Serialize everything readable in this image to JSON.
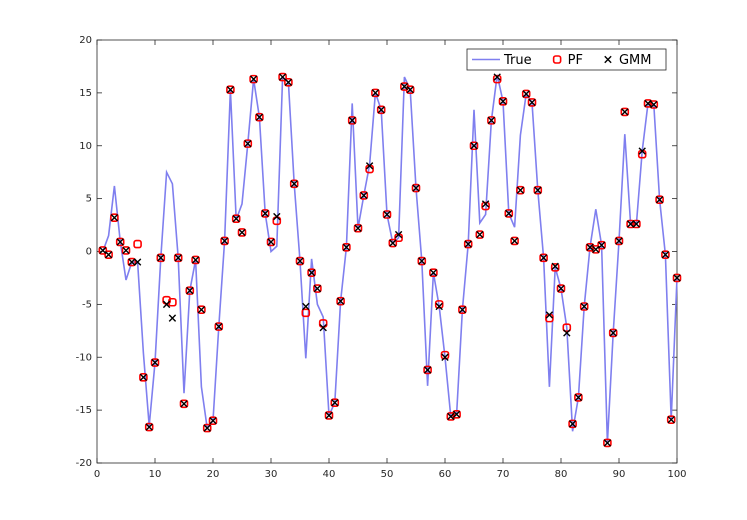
{
  "chart_data": {
    "type": "line",
    "x": [
      1,
      2,
      3,
      4,
      5,
      6,
      7,
      8,
      9,
      10,
      11,
      12,
      13,
      14,
      15,
      16,
      17,
      18,
      19,
      20,
      21,
      22,
      23,
      24,
      25,
      26,
      27,
      28,
      29,
      30,
      31,
      32,
      33,
      34,
      35,
      36,
      37,
      38,
      39,
      40,
      41,
      42,
      43,
      44,
      45,
      46,
      47,
      48,
      49,
      50,
      51,
      52,
      53,
      54,
      55,
      56,
      57,
      58,
      59,
      60,
      61,
      62,
      63,
      64,
      65,
      66,
      67,
      68,
      69,
      70,
      71,
      72,
      73,
      74,
      75,
      76,
      77,
      78,
      79,
      80,
      81,
      82,
      83,
      84,
      85,
      86,
      87,
      88,
      89,
      90,
      91,
      92,
      93,
      94,
      95,
      96,
      97,
      98,
      99,
      100
    ],
    "series": [
      {
        "name": "True",
        "color": "#7f7fef",
        "style": "line",
        "values": [
          0.0,
          1.5,
          6.2,
          1.0,
          -2.7,
          -1.0,
          -1.0,
          -9.6,
          -16.5,
          -10.5,
          -0.6,
          7.5,
          6.4,
          -0.6,
          -13.4,
          -3.7,
          -0.8,
          -12.8,
          -16.7,
          -16.0,
          -7.1,
          1.0,
          15.3,
          3.0,
          4.5,
          10.2,
          16.3,
          12.7,
          3.6,
          0.0,
          0.5,
          16.5,
          16.0,
          6.4,
          -0.9,
          -10.1,
          -0.7,
          -5.0,
          -6.2,
          -15.5,
          -14.3,
          -4.7,
          0.4,
          14.0,
          2.2,
          5.3,
          8.2,
          15.0,
          13.4,
          3.5,
          0.8,
          1.3,
          16.5,
          15.3,
          6.0,
          -0.9,
          -12.7,
          -2.0,
          -5.2,
          -10.0,
          -15.6,
          -15.4,
          -5.5,
          0.7,
          13.4,
          2.7,
          3.5,
          12.4,
          16.7,
          14.2,
          3.6,
          2.3,
          11.0,
          14.9,
          14.1,
          5.8,
          -0.6,
          -12.8,
          -1.5,
          -3.5,
          -7.2,
          -17.0,
          -13.8,
          -5.2,
          0.4,
          4.0,
          0.6,
          -18.1,
          -7.7,
          1.0,
          11.1,
          2.6,
          2.6,
          9.5,
          14.0,
          13.9,
          4.9,
          -0.3,
          -15.9,
          -2.5
        ]
      },
      {
        "name": "PF",
        "color": "#ff0000",
        "style": "square",
        "values": [
          0.1,
          -0.3,
          3.2,
          0.9,
          0.1,
          -1.0,
          0.7,
          -11.9,
          -16.6,
          -10.5,
          -0.6,
          -4.6,
          -4.8,
          -0.6,
          -14.4,
          -3.7,
          -0.8,
          -5.5,
          -16.7,
          -16.0,
          -7.1,
          1.0,
          15.3,
          3.1,
          1.8,
          10.2,
          16.3,
          12.7,
          3.6,
          0.9,
          2.9,
          16.5,
          16.0,
          6.4,
          -0.9,
          -5.8,
          -2.0,
          -3.5,
          -6.8,
          -15.5,
          -14.3,
          -4.7,
          0.4,
          12.4,
          2.2,
          5.3,
          7.8,
          15.0,
          13.4,
          3.5,
          0.8,
          1.3,
          15.6,
          15.3,
          6.0,
          -0.9,
          -11.2,
          -2.0,
          -5.0,
          -9.8,
          -15.6,
          -15.4,
          -5.5,
          0.7,
          10.0,
          1.6,
          4.3,
          12.4,
          16.3,
          14.2,
          3.6,
          1.0,
          5.8,
          14.9,
          14.1,
          5.8,
          -0.6,
          -6.3,
          -1.5,
          -3.5,
          -7.2,
          -16.3,
          -13.8,
          -5.2,
          0.4,
          0.2,
          0.6,
          -18.1,
          -7.7,
          1.0,
          13.2,
          2.6,
          2.6,
          9.2,
          14.0,
          13.9,
          4.9,
          -0.3,
          -15.9,
          -2.5
        ]
      },
      {
        "name": "GMM",
        "color": "#000000",
        "style": "x",
        "values": [
          0.1,
          -0.3,
          3.2,
          0.9,
          0.1,
          -1.0,
          -1.0,
          -11.9,
          -16.6,
          -10.5,
          -0.6,
          -5.0,
          -6.3,
          -0.6,
          -14.4,
          -3.7,
          -0.8,
          -5.5,
          -16.7,
          -16.0,
          -7.1,
          1.0,
          15.3,
          3.1,
          1.8,
          10.2,
          16.3,
          12.7,
          3.6,
          0.9,
          3.3,
          16.5,
          16.0,
          6.4,
          -0.9,
          -5.2,
          -2.0,
          -3.5,
          -7.2,
          -15.5,
          -14.3,
          -4.7,
          0.4,
          12.4,
          2.2,
          5.3,
          8.1,
          15.0,
          13.4,
          3.5,
          0.8,
          1.6,
          15.6,
          15.3,
          6.0,
          -0.9,
          -11.2,
          -2.0,
          -5.2,
          -10.0,
          -15.6,
          -15.4,
          -5.5,
          0.7,
          10.0,
          1.6,
          4.5,
          12.4,
          16.5,
          14.2,
          3.6,
          1.0,
          5.8,
          14.9,
          14.1,
          5.8,
          -0.6,
          -6.0,
          -1.4,
          -3.5,
          -7.7,
          -16.3,
          -13.8,
          -5.2,
          0.4,
          0.2,
          0.6,
          -18.1,
          -7.7,
          1.0,
          13.2,
          2.6,
          2.6,
          9.5,
          14.0,
          13.9,
          4.9,
          -0.3,
          -15.9,
          -2.5
        ]
      }
    ],
    "xlim": [
      0,
      100
    ],
    "xticks": [
      0,
      10,
      20,
      30,
      40,
      50,
      60,
      70,
      80,
      90,
      100
    ],
    "ylim": [
      -20,
      20
    ],
    "yticks": [
      -20,
      -15,
      -10,
      -5,
      0,
      5,
      10,
      15,
      20
    ],
    "grid": false,
    "legend": "top-right"
  }
}
